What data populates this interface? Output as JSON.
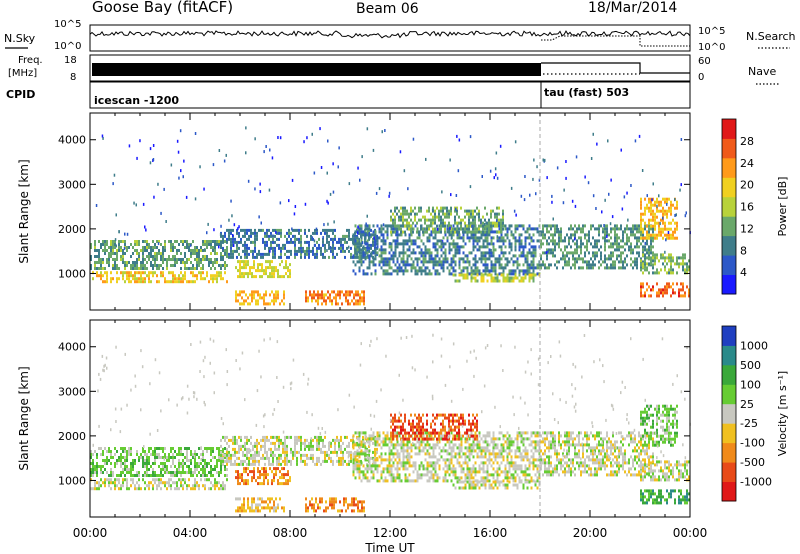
{
  "header": {
    "station": "Goose Bay (fitACF)",
    "beam": "Beam 06",
    "date": "18/Mar/2014"
  },
  "status_panels": {
    "nsky_label": "N.Sky",
    "nsky_ticks": [
      "10^5",
      "10^0"
    ],
    "nsearch_label": "N.Search",
    "nsearch_ticks": [
      "10^5",
      "10^0"
    ],
    "freq_label_1": "Freq.",
    "freq_label_2": "[MHz]",
    "freq_ticks": [
      "18",
      "8"
    ],
    "nave_label": "Nave",
    "nave_ticks": [
      "60",
      "0"
    ],
    "cpid_label": "CPID",
    "cpid_modes": [
      {
        "name": "icescan -1200",
        "start": 0.0,
        "end": 18.0
      },
      {
        "name": "tau (fast) 503",
        "start": 18.0,
        "end": 24.0
      }
    ]
  },
  "chart_data": [
    {
      "type": "heatmap",
      "title": "Power",
      "ylabel": "Slant Range [km]",
      "xlabel": "Time UT",
      "xlim": [
        0,
        24
      ],
      "ylim": [
        180,
        4600
      ],
      "x_tick_labels": [
        "00:00",
        "04:00",
        "08:00",
        "12:00",
        "16:00",
        "20:00",
        "00:00"
      ],
      "y_tick_labels": [
        "1000",
        "2000",
        "3000",
        "4000"
      ],
      "colorbar": {
        "label": "Power [dB]",
        "ticks": [
          "28",
          "24",
          "20",
          "16",
          "12",
          "8",
          "4"
        ],
        "range": [
          0,
          32
        ],
        "colors": [
          "#1a1aff",
          "#2c58c8",
          "#3f7d8a",
          "#6aa86a",
          "#b8d23a",
          "#f0d020",
          "#ff9a1a",
          "#f05a1a",
          "#e01818"
        ]
      },
      "echo_regions": [
        {
          "t0": 0.0,
          "t1": 5.5,
          "r0": 1100,
          "r1": 1750,
          "level": 11
        },
        {
          "t0": 0.0,
          "t1": 5.5,
          "r0": 800,
          "r1": 1050,
          "level": 20
        },
        {
          "t0": 5.2,
          "t1": 11.5,
          "r0": 1350,
          "r1": 2000,
          "level": 7
        },
        {
          "t0": 5.8,
          "t1": 8.0,
          "r0": 900,
          "r1": 1300,
          "level": 18
        },
        {
          "t0": 5.8,
          "t1": 7.8,
          "r0": 350,
          "r1": 620,
          "level": 22
        },
        {
          "t0": 8.6,
          "t1": 11.0,
          "r0": 320,
          "r1": 620,
          "level": 25
        },
        {
          "t0": 10.5,
          "t1": 18.0,
          "r0": 1000,
          "r1": 2100,
          "level": 8
        },
        {
          "t0": 12.0,
          "t1": 16.5,
          "r0": 1900,
          "r1": 2500,
          "level": 12
        },
        {
          "t0": 14.5,
          "t1": 18.0,
          "r0": 800,
          "r1": 1000,
          "level": 17
        },
        {
          "t0": 18.0,
          "t1": 22.5,
          "r0": 1150,
          "r1": 2100,
          "level": 10
        },
        {
          "t0": 22.0,
          "t1": 23.5,
          "r0": 1800,
          "r1": 2700,
          "level": 22
        },
        {
          "t0": 22.0,
          "t1": 24.0,
          "r0": 1000,
          "r1": 1450,
          "level": 13
        },
        {
          "t0": 22.0,
          "t1": 24.0,
          "r0": 500,
          "r1": 800,
          "level": 27
        }
      ]
    },
    {
      "type": "heatmap",
      "title": "Velocity",
      "ylabel": "Slant Range [km]",
      "xlabel": "Time UT",
      "xlim": [
        0,
        24
      ],
      "ylim": [
        180,
        4600
      ],
      "x_tick_labels": [
        "00:00",
        "04:00",
        "08:00",
        "12:00",
        "16:00",
        "20:00",
        "00:00"
      ],
      "y_tick_labels": [
        "1000",
        "2000",
        "3000",
        "4000"
      ],
      "colorbar": {
        "label": "Velocity [m s⁻¹]",
        "ticks": [
          "1000",
          "500",
          "100",
          "25",
          "-25",
          "-100",
          "-500",
          "-1000"
        ],
        "levels": [
          1000,
          500,
          100,
          25,
          -25,
          -100,
          -500,
          -1000
        ],
        "colors": [
          "#1f3fc0",
          "#2a8a8a",
          "#3aa83a",
          "#66cc33",
          "#c8c8c0",
          "#f0c020",
          "#f08a1a",
          "#e84a18",
          "#e01818"
        ]
      },
      "echo_regions": [
        {
          "t0": 0.0,
          "t1": 5.5,
          "r0": 1100,
          "r1": 1750,
          "level": 3
        },
        {
          "t0": 0.0,
          "t1": 5.5,
          "r0": 800,
          "r1": 1050,
          "level": 4
        },
        {
          "t0": 5.2,
          "t1": 11.5,
          "r0": 1350,
          "r1": 2000,
          "level": 4
        },
        {
          "t0": 5.8,
          "t1": 8.0,
          "r0": 900,
          "r1": 1300,
          "level": 6
        },
        {
          "t0": 5.8,
          "t1": 7.8,
          "r0": 350,
          "r1": 620,
          "level": 5
        },
        {
          "t0": 8.6,
          "t1": 11.0,
          "r0": 320,
          "r1": 620,
          "level": 6
        },
        {
          "t0": 10.5,
          "t1": 18.0,
          "r0": 1000,
          "r1": 2100,
          "level": 4
        },
        {
          "t0": 12.0,
          "t1": 15.5,
          "r0": 1900,
          "r1": 2500,
          "level": 7
        },
        {
          "t0": 14.5,
          "t1": 18.0,
          "r0": 800,
          "r1": 1000,
          "level": 4
        },
        {
          "t0": 18.0,
          "t1": 22.5,
          "r0": 1150,
          "r1": 2100,
          "level": 4
        },
        {
          "t0": 22.0,
          "t1": 23.5,
          "r0": 1800,
          "r1": 2700,
          "level": 3
        },
        {
          "t0": 22.0,
          "t1": 24.0,
          "r0": 1000,
          "r1": 1450,
          "level": 4
        },
        {
          "t0": 22.0,
          "t1": 24.0,
          "r0": 500,
          "r1": 800,
          "level": 2
        }
      ]
    }
  ]
}
